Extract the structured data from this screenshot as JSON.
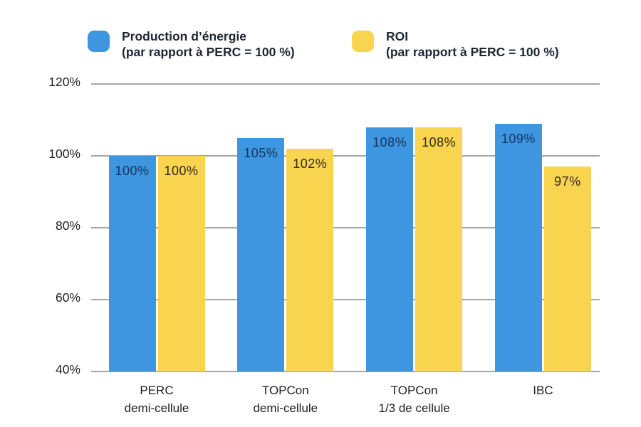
{
  "chart_data": {
    "type": "bar",
    "title": "",
    "categories": [
      "PERC\ndemi-cellule",
      "TOPCon\ndemi-cellule",
      "TOPCon\n1/3 de cellule",
      "IBC"
    ],
    "series": [
      {
        "name": "Production d’énergie",
        "note": "(par rapport à PERC = 100 %)",
        "color": "#3D96DF",
        "label_color": "#17335F",
        "values": [
          100,
          105,
          108,
          109
        ]
      },
      {
        "name": "ROI",
        "note": "(par rapport à PERC = 100 %)",
        "color": "#F9D44F",
        "label_color": "#312A18",
        "values": [
          100,
          102,
          108,
          97
        ]
      }
    ],
    "value_suffix": "%",
    "yticks": [
      120,
      100,
      80,
      60,
      40
    ],
    "ytick_labels": [
      "120%",
      "100%",
      "80%",
      "60%",
      "40%"
    ],
    "ylim": [
      40,
      120
    ],
    "baseline": 40,
    "grid": true,
    "legend_position": "top",
    "grid_color": "#A6A6A6",
    "axis_text_color": "#1F1F1F",
    "background": "#FFFFFF"
  }
}
